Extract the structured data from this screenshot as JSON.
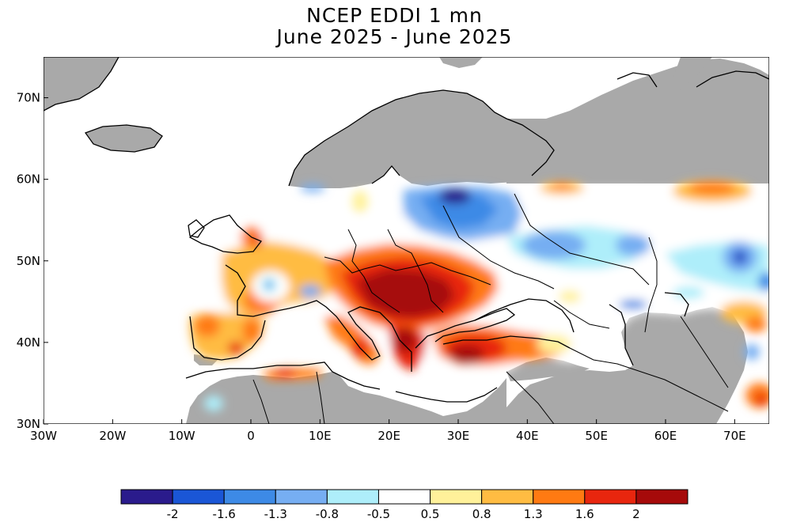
{
  "title_line1": "NCEP EDDI 1 mn",
  "title_line2": "June 2025 - June 2025",
  "map": {
    "projection": "equirectangular",
    "lon_range": [
      -30,
      75
    ],
    "lat_range": [
      30,
      75
    ],
    "no_data_color": "#a9a9a9",
    "x_tick_labels": [
      {
        "lon": -30,
        "label": "30W"
      },
      {
        "lon": -20,
        "label": "20W"
      },
      {
        "lon": -10,
        "label": "10W"
      },
      {
        "lon": 0,
        "label": "0"
      },
      {
        "lon": 10,
        "label": "10E"
      },
      {
        "lon": 20,
        "label": "20E"
      },
      {
        "lon": 30,
        "label": "30E"
      },
      {
        "lon": 40,
        "label": "40E"
      },
      {
        "lon": 50,
        "label": "50E"
      },
      {
        "lon": 60,
        "label": "60E"
      },
      {
        "lon": 70,
        "label": "70E"
      }
    ],
    "y_tick_labels": [
      {
        "lat": 30,
        "label": "30N"
      },
      {
        "lat": 40,
        "label": "40N"
      },
      {
        "lat": 50,
        "label": "50N"
      },
      {
        "lat": 60,
        "label": "60N"
      },
      {
        "lat": 70,
        "label": "70N"
      }
    ]
  },
  "colorbar": {
    "labels": [
      "-2",
      "-1.6",
      "-1.3",
      "-0.8",
      "-0.5",
      "0.5",
      "0.8",
      "1.3",
      "1.6",
      "2"
    ],
    "colors": [
      "#2a1b8c",
      "#1a56d6",
      "#3d8ae6",
      "#76aef2",
      "#aeeefa",
      "#ffffff",
      "#fff19a",
      "#ffbc42",
      "#ff7a12",
      "#e8260e",
      "#a60a0a"
    ]
  }
}
